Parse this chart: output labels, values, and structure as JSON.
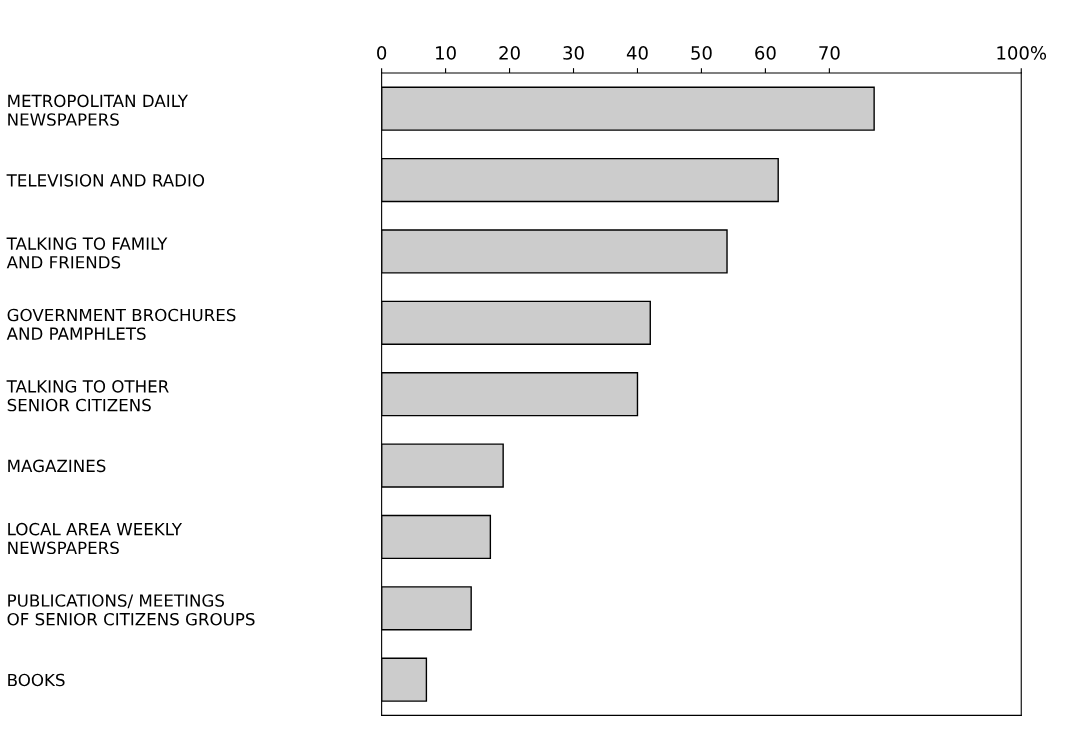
{
  "chart_data": {
    "type": "bar",
    "orientation": "horizontal",
    "categories": [
      "METROPOLITAN DAILY\nNEWSPAPERS",
      "TELEVISION AND RADIO",
      "TALKING TO FAMILY\nAND FRIENDS",
      "GOVERNMENT BROCHURES\nAND PAMPHLETS",
      "TALKING TO OTHER\nSENIOR CITIZENS",
      "MAGAZINES",
      "LOCAL AREA WEEKLY\nNEWSPAPERS",
      "PUBLICATIONS/ MEETINGS\nOF SENIOR CITIZENS GROUPS",
      "BOOKS"
    ],
    "values": [
      77,
      62,
      54,
      42,
      40,
      19,
      17,
      14,
      7
    ],
    "color": "#cccccc",
    "xlim": [
      0,
      100
    ],
    "xticks": [
      0,
      10,
      20,
      30,
      40,
      50,
      60,
      70,
      {
        "value": 100,
        "label": "100%"
      }
    ],
    "grid": false
  }
}
